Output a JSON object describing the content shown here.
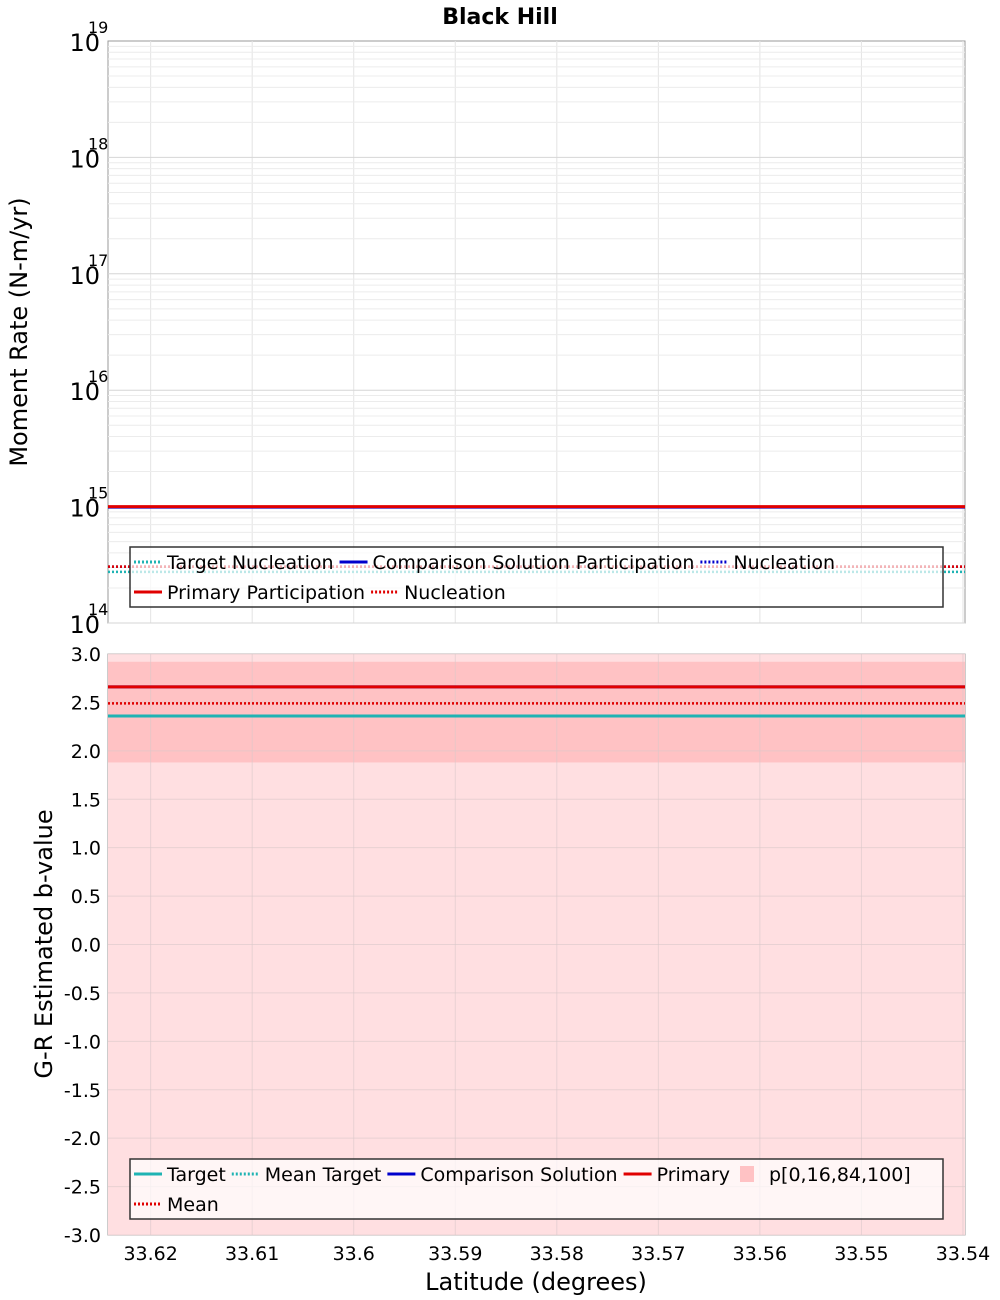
{
  "chart_data": [
    {
      "type": "line",
      "title": "Black Hill",
      "ylabel": "Moment Rate (N-m/yr)",
      "yscale": "log",
      "ylim_exp": [
        14,
        19
      ],
      "y_ticks": [
        {
          "base": "10",
          "exp": "14"
        },
        {
          "base": "10",
          "exp": "15"
        },
        {
          "base": "10",
          "exp": "16"
        },
        {
          "base": "10",
          "exp": "17"
        },
        {
          "base": "10",
          "exp": "18"
        },
        {
          "base": "10",
          "exp": "19"
        }
      ],
      "xlim": [
        33.6242,
        33.5398
      ],
      "series": [
        {
          "name": "Target Nucleation",
          "color": "#1fb3b3",
          "dash": "dotted",
          "y": 275000000000000.0
        },
        {
          "name": "Comparison Solution Participation",
          "color": "#0000cc",
          "dash": "solid",
          "y": 990000000000000.0
        },
        {
          "name": "Nucleation",
          "color": "#0000cc",
          "dash": "dotted",
          "y": 305000000000000.0
        },
        {
          "name": "Primary Participation",
          "color": "#e00000",
          "dash": "solid",
          "y": 1000000000000000.0
        },
        {
          "name": "Nucleation",
          "color": "#e00000",
          "dash": "dotted",
          "y": 305000000000000.0
        }
      ],
      "legend": {
        "position": "bottom",
        "rows": [
          [
            {
              "label": "Target Nucleation",
              "color": "#1fb3b3",
              "dash": "dotted"
            },
            {
              "label": "Comparison Solution Participation",
              "color": "#0000cc",
              "dash": "solid"
            },
            {
              "label": "Nucleation",
              "color": "#0000cc",
              "dash": "dotted"
            }
          ],
          [
            {
              "label": "Primary Participation",
              "color": "#e00000",
              "dash": "solid"
            },
            {
              "label": "Nucleation",
              "color": "#e00000",
              "dash": "dotted"
            }
          ]
        ]
      }
    },
    {
      "type": "line",
      "xlabel": "Latitude (degrees)",
      "ylabel": "G-R Estimated b-value",
      "ylim": [
        -3.0,
        3.0
      ],
      "y_ticks": [
        "3.0",
        "2.5",
        "2.0",
        "1.5",
        "1.0",
        "0.5",
        "0.0",
        "-0.5",
        "-1.0",
        "-1.5",
        "-2.0",
        "-2.5",
        "-3.0"
      ],
      "xlim": [
        33.6242,
        33.5398
      ],
      "x_ticks": [
        "33.62",
        "33.61",
        "33.6",
        "33.59",
        "33.58",
        "33.57",
        "33.56",
        "33.55",
        "33.54"
      ],
      "bands": [
        {
          "name": "p[0,100]",
          "low": -3.0,
          "high": 3.0,
          "color": "#ffdfe1"
        },
        {
          "name": "p[16,84]",
          "low": 1.88,
          "high": 2.92,
          "color": "#ffc2c4"
        }
      ],
      "series": [
        {
          "name": "Target",
          "color": "#1fb3b3",
          "dash": "solid",
          "y": 2.36
        },
        {
          "name": "Mean Target",
          "color": "#1fb3b3",
          "dash": "dotted",
          "y": 2.36
        },
        {
          "name": "Comparison Solution",
          "color": "#0000cc",
          "dash": "solid",
          "y": 2.66
        },
        {
          "name": "Primary",
          "color": "#e00000",
          "dash": "solid",
          "y": 2.66
        },
        {
          "name": "Mean",
          "color": "#e00000",
          "dash": "dotted",
          "y": 2.49
        }
      ],
      "legend": {
        "position": "bottom",
        "rows": [
          [
            {
              "label": "Target",
              "color": "#1fb3b3",
              "dash": "solid"
            },
            {
              "label": "Mean Target",
              "color": "#1fb3b3",
              "dash": "dotted"
            },
            {
              "label": "Comparison Solution",
              "color": "#0000cc",
              "dash": "solid"
            },
            {
              "label": "Primary",
              "color": "#e00000",
              "dash": "solid"
            },
            {
              "label": "p[0,16,84,100]",
              "color": "#ffc2c4",
              "dash": "box"
            }
          ],
          [
            {
              "label": "Mean",
              "color": "#e00000",
              "dash": "dotted"
            }
          ]
        ]
      }
    }
  ]
}
